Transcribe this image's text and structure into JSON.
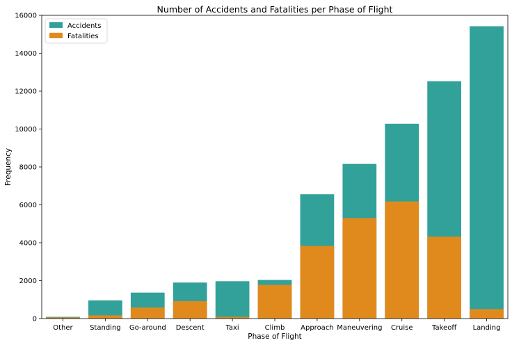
{
  "chart_data": {
    "type": "bar",
    "title": "Number of Accidents and Fatalities per Phase of Flight",
    "xlabel": "Phase of Flight",
    "ylabel": "Frequency",
    "ylim": [
      0,
      16000
    ],
    "yticks": [
      0,
      2000,
      4000,
      6000,
      8000,
      10000,
      12000,
      14000,
      16000
    ],
    "grid": false,
    "legend_position": "top-left",
    "categories": [
      "Other",
      "Standing",
      "Go-around",
      "Descent",
      "Taxi",
      "Climb",
      "Approach",
      "Maneuvering",
      "Cruise",
      "Takeoff",
      "Landing"
    ],
    "series": [
      {
        "name": "Accidents",
        "color": "#31a19a",
        "values": [
          90,
          960,
          1370,
          1900,
          1970,
          2040,
          6560,
          8160,
          10280,
          12520,
          15420
        ]
      },
      {
        "name": "Fatalities",
        "color": "#e08a1e",
        "values": [
          60,
          170,
          580,
          920,
          90,
          1780,
          3830,
          5300,
          6180,
          4320,
          500
        ]
      }
    ],
    "overlay": true
  }
}
